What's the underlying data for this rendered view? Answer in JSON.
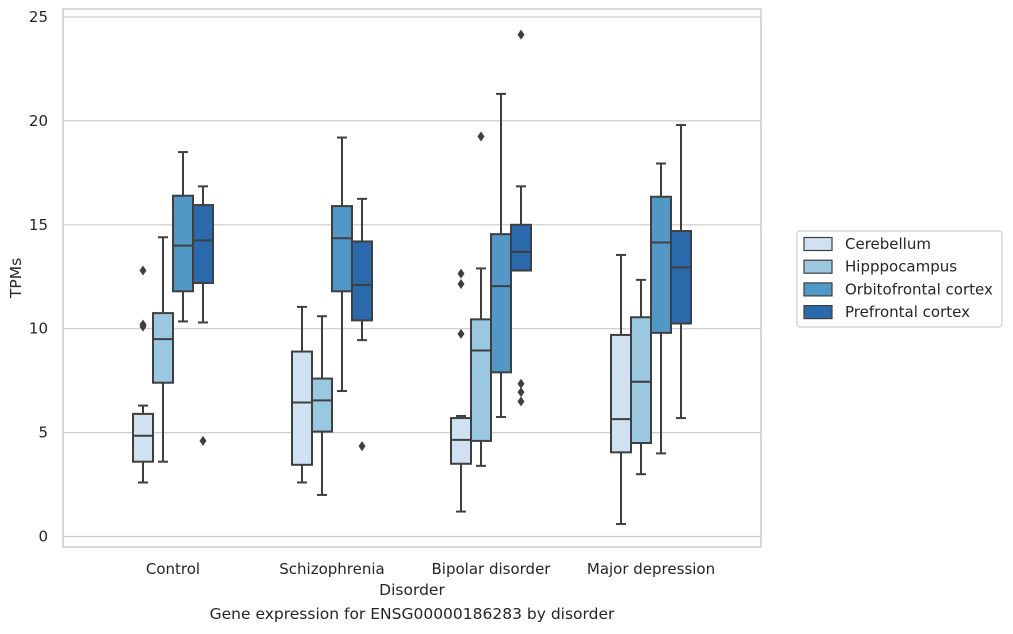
{
  "chart_data": {
    "type": "box",
    "xlabel": "Disorder",
    "ylabel": "TPMs",
    "caption": "Gene expression for ENSG00000186283 by disorder",
    "categories": [
      "Control",
      "Schizophrenia",
      "Bipolar disorder",
      "Major depression"
    ],
    "ylim": [
      -0.5,
      25.3
    ],
    "yticks": [
      0,
      5,
      10,
      15,
      20,
      25
    ],
    "grid": "horizontal",
    "legend_position": "right",
    "series": [
      {
        "name": "Cerebellum",
        "color": "#d0e1f2",
        "boxes": [
          {
            "whislo": 2.6,
            "q1": 3.6,
            "med": 4.85,
            "q3": 5.9,
            "whishi": 6.3,
            "fliers": [
              10.1,
              10.2,
              12.8
            ]
          },
          {
            "whislo": 2.6,
            "q1": 3.45,
            "med": 6.45,
            "q3": 8.9,
            "whishi": 11.05,
            "fliers": []
          },
          {
            "whislo": 1.2,
            "q1": 3.5,
            "med": 4.65,
            "q3": 5.7,
            "whishi": 5.8,
            "fliers": [
              9.75,
              12.15,
              12.65
            ]
          },
          {
            "whislo": 0.6,
            "q1": 4.05,
            "med": 5.65,
            "q3": 9.7,
            "whishi": 13.55,
            "fliers": []
          }
        ]
      },
      {
        "name": "Hipppocampus",
        "color": "#9ac8e0",
        "boxes": [
          {
            "whislo": 3.6,
            "q1": 7.4,
            "med": 9.5,
            "q3": 10.75,
            "whishi": 14.4,
            "fliers": []
          },
          {
            "whislo": 2.0,
            "q1": 5.05,
            "med": 6.55,
            "q3": 7.6,
            "whishi": 10.6,
            "fliers": []
          },
          {
            "whislo": 3.4,
            "q1": 4.6,
            "med": 8.95,
            "q3": 10.45,
            "whishi": 12.9,
            "fliers": [
              19.25
            ]
          },
          {
            "whislo": 3.0,
            "q1": 4.5,
            "med": 7.45,
            "q3": 10.55,
            "whishi": 12.35,
            "fliers": []
          }
        ]
      },
      {
        "name": "Orbitofrontal cortex",
        "color": "#5298c6",
        "boxes": [
          {
            "whislo": 10.35,
            "q1": 11.8,
            "med": 14.0,
            "q3": 16.4,
            "whishi": 18.5,
            "fliers": []
          },
          {
            "whislo": 7.0,
            "q1": 11.8,
            "med": 14.35,
            "q3": 15.9,
            "whishi": 19.2,
            "fliers": []
          },
          {
            "whislo": 5.75,
            "q1": 7.9,
            "med": 12.05,
            "q3": 14.55,
            "whishi": 21.3,
            "fliers": []
          },
          {
            "whislo": 4.0,
            "q1": 9.8,
            "med": 14.15,
            "q3": 16.35,
            "whishi": 17.95,
            "fliers": []
          }
        ]
      },
      {
        "name": "Prefrontal cortex",
        "color": "#2a69ac",
        "boxes": [
          {
            "whislo": 10.3,
            "q1": 12.2,
            "med": 14.25,
            "q3": 15.95,
            "whishi": 16.85,
            "fliers": [
              4.6
            ]
          },
          {
            "whislo": 9.45,
            "q1": 10.4,
            "med": 12.1,
            "q3": 14.2,
            "whishi": 16.25,
            "fliers": [
              4.35
            ]
          },
          {
            "whislo": 12.8,
            "q1": 12.8,
            "med": 13.7,
            "q3": 15.0,
            "whishi": 16.85,
            "fliers": [
              6.5,
              6.95,
              7.35,
              24.15
            ]
          },
          {
            "whislo": 5.7,
            "q1": 10.25,
            "med": 12.95,
            "q3": 14.7,
            "whishi": 19.8,
            "fliers": []
          }
        ]
      }
    ]
  }
}
